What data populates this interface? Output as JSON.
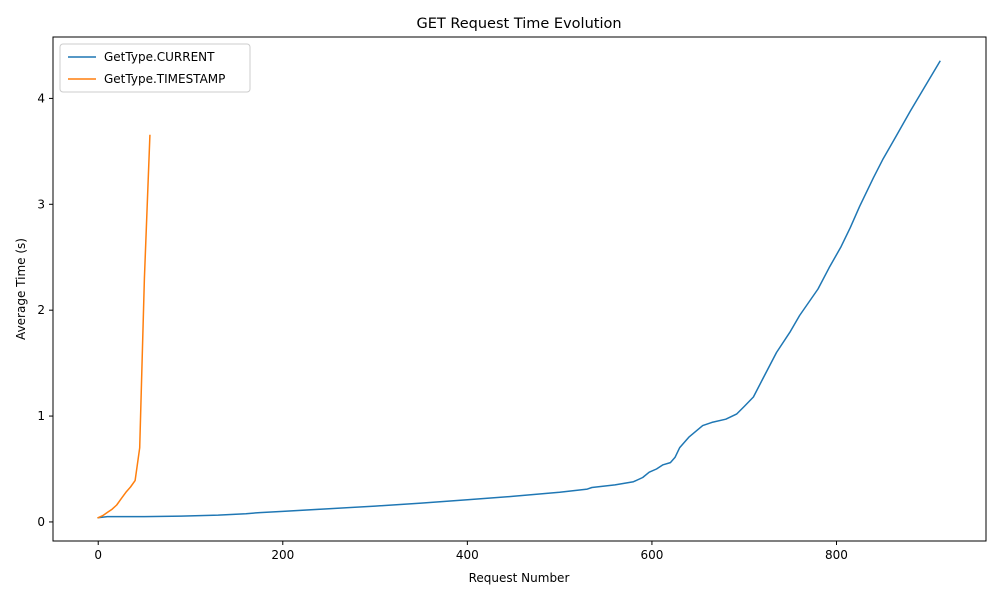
{
  "chart_data": {
    "type": "line",
    "title": "GET Request Time Evolution",
    "xlabel": "Request Number",
    "ylabel": "Average Time (s)",
    "xlim": [
      -49,
      962
    ],
    "ylim": [
      -0.18,
      4.58
    ],
    "xticks": [
      0,
      200,
      400,
      600,
      800
    ],
    "yticks": [
      0,
      1,
      2,
      3,
      4
    ],
    "grid": false,
    "legend_position": "top-left",
    "series": [
      {
        "name": "GetType.CURRENT",
        "color": "#1f77b4",
        "x": [
          0,
          10,
          20,
          50,
          90,
          130,
          160,
          175,
          200,
          250,
          300,
          350,
          400,
          450,
          500,
          530,
          535,
          560,
          580,
          590,
          597,
          605,
          612,
          620,
          625,
          630,
          640,
          655,
          665,
          680,
          692,
          700,
          710,
          720,
          735,
          750,
          760,
          780,
          792,
          805,
          815,
          825,
          840,
          850,
          865,
          880,
          895,
          912
        ],
        "y": [
          0.04,
          0.05,
          0.05,
          0.05,
          0.055,
          0.065,
          0.078,
          0.088,
          0.1,
          0.125,
          0.15,
          0.178,
          0.21,
          0.242,
          0.28,
          0.31,
          0.325,
          0.35,
          0.38,
          0.42,
          0.47,
          0.5,
          0.54,
          0.56,
          0.61,
          0.7,
          0.8,
          0.91,
          0.94,
          0.97,
          1.02,
          1.09,
          1.18,
          1.35,
          1.6,
          1.8,
          1.95,
          2.2,
          2.4,
          2.6,
          2.78,
          2.98,
          3.25,
          3.42,
          3.65,
          3.88,
          4.1,
          4.35
        ]
      },
      {
        "name": "GetType.TIMESTAMP",
        "color": "#ff7f0e",
        "x": [
          0,
          5,
          10,
          15,
          20,
          25,
          30,
          35,
          40,
          45,
          50,
          56
        ],
        "y": [
          0.04,
          0.06,
          0.09,
          0.12,
          0.16,
          0.22,
          0.28,
          0.33,
          0.39,
          0.7,
          2.3,
          3.65
        ]
      }
    ]
  }
}
